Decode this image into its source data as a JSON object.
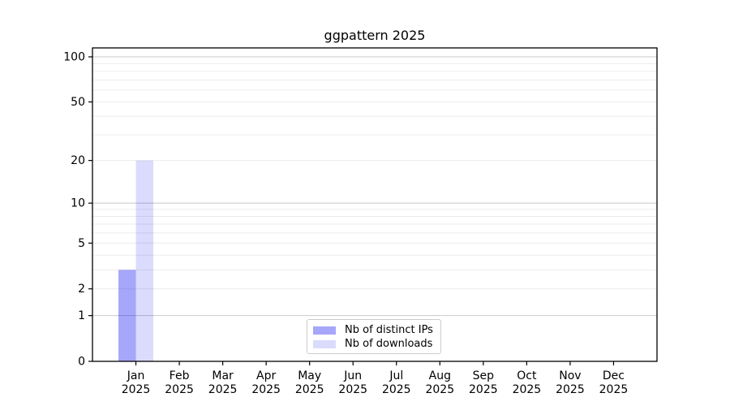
{
  "title": "ggpattern 2025",
  "chart_data": {
    "type": "bar",
    "title": "ggpattern 2025",
    "x_categories": [
      "Jan",
      "Feb",
      "Mar",
      "Apr",
      "May",
      "Jun",
      "Jul",
      "Aug",
      "Sep",
      "Oct",
      "Nov",
      "Dec"
    ],
    "x_sublabel": "2025",
    "series": [
      {
        "name": "Nb of distinct IPs",
        "values": [
          3,
          0,
          0,
          0,
          0,
          0,
          0,
          0,
          0,
          0,
          0,
          0
        ],
        "fill": "#0000f0",
        "fill_opacity": 0.35,
        "flat_color": "#a5a5fa"
      },
      {
        "name": "Nb of downloads",
        "values": [
          20,
          0,
          0,
          0,
          0,
          0,
          0,
          0,
          0,
          0,
          0,
          0
        ],
        "fill": "#0000f0",
        "fill_opacity": 0.14,
        "flat_color": "#dbdbfd"
      }
    ],
    "y_scale": "log1p",
    "ylim": [
      0,
      110
    ],
    "y_ticks": [
      0,
      1,
      2,
      5,
      10,
      20,
      50,
      100
    ],
    "y_major_gridlines": [
      1,
      10,
      100
    ],
    "y_minor_gridlines": [
      2,
      3,
      4,
      5,
      6,
      7,
      8,
      9,
      20,
      30,
      40,
      50,
      60,
      70,
      80,
      90
    ],
    "grid": true,
    "legend_position": "bottom-center"
  },
  "colors": {
    "background": "#ffffff",
    "axis": "#000000",
    "text": "#000000",
    "grid_major": "#c9c9c9",
    "grid_minor": "#ececec",
    "legend_border": "#cccccc"
  }
}
